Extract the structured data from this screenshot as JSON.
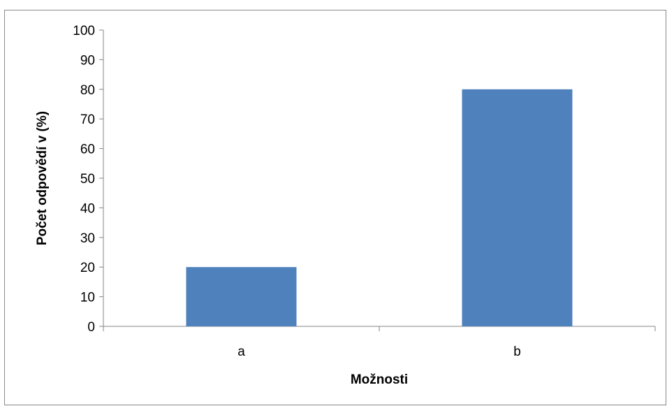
{
  "chart_data": {
    "type": "bar",
    "categories": [
      "a",
      "b"
    ],
    "values": [
      20,
      80
    ],
    "xlabel": "Možnosti",
    "ylabel": "Počet odpovědí v (%)",
    "ylim": [
      0,
      100
    ],
    "yticks": [
      0,
      10,
      20,
      30,
      40,
      50,
      60,
      70,
      80,
      90,
      100
    ],
    "grid": false,
    "legend": "none",
    "colors": {
      "bar": "#4f81bd",
      "axis": "#868686"
    }
  }
}
